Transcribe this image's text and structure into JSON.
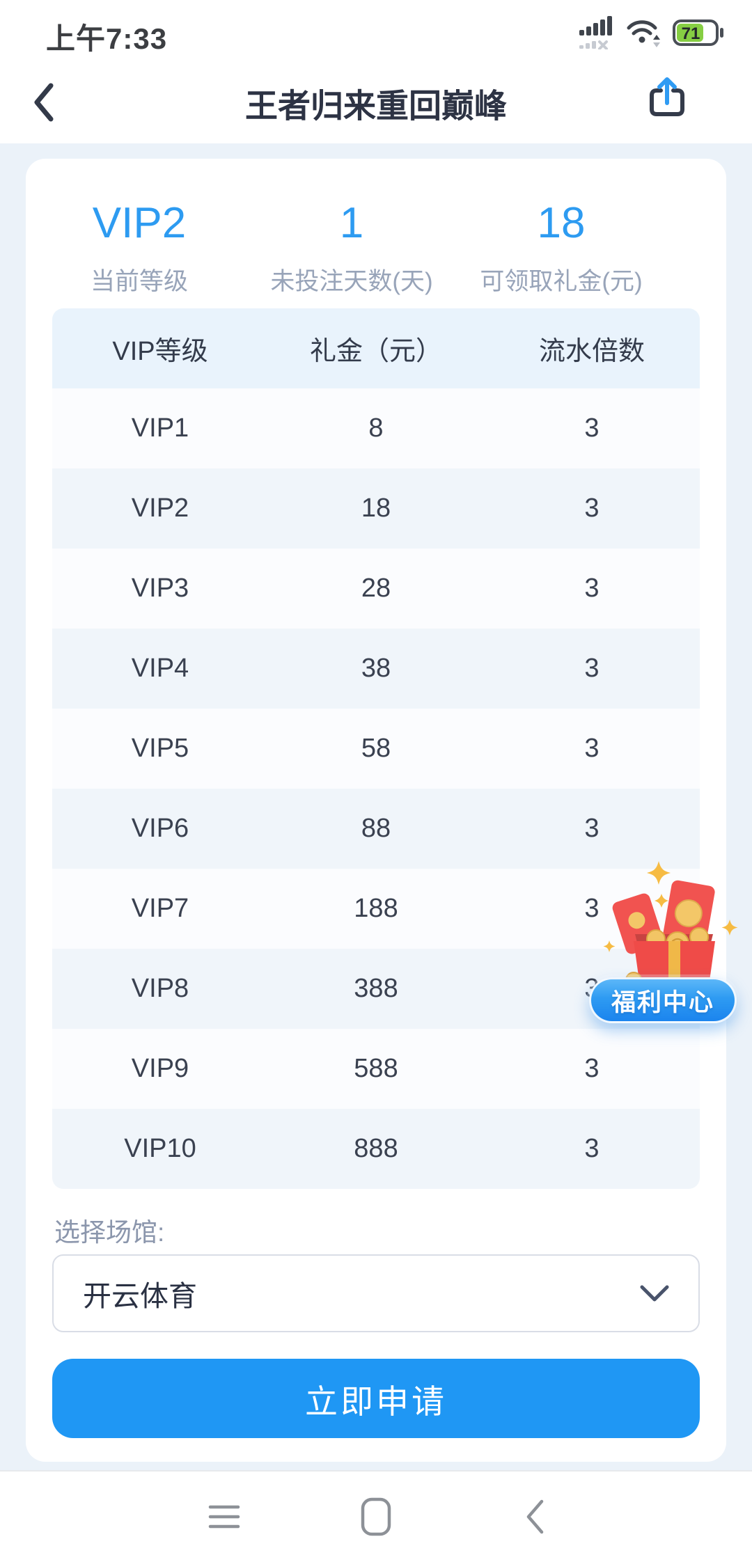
{
  "status_bar": {
    "time": "上午7:33",
    "battery_level": "71",
    "icons": [
      "dual-sim-signal-icon",
      "wifi-icon",
      "battery-icon"
    ]
  },
  "header": {
    "title": "王者归来重回巅峰",
    "back_icon": "back-chevron-icon",
    "share_icon": "share-icon"
  },
  "stats": [
    {
      "value": "VIP2",
      "label": "当前等级"
    },
    {
      "value": "1",
      "label": "未投注天数(天)"
    },
    {
      "value": "18",
      "label": "可领取礼金(元)"
    }
  ],
  "table": {
    "headers": [
      "VIP等级",
      "礼金（元）",
      "流水倍数"
    ],
    "rows": [
      [
        "VIP1",
        "8",
        "3"
      ],
      [
        "VIP2",
        "18",
        "3"
      ],
      [
        "VIP3",
        "28",
        "3"
      ],
      [
        "VIP4",
        "38",
        "3"
      ],
      [
        "VIP5",
        "58",
        "3"
      ],
      [
        "VIP6",
        "88",
        "3"
      ],
      [
        "VIP7",
        "188",
        "3"
      ],
      [
        "VIP8",
        "388",
        "3"
      ],
      [
        "VIP9",
        "588",
        "3"
      ],
      [
        "VIP10",
        "888",
        "3"
      ]
    ]
  },
  "venue": {
    "label": "选择场馆:",
    "selected": "开云体育"
  },
  "apply_button": {
    "label": "立即申请"
  },
  "floating_widget": {
    "label": "福利中心",
    "art": "gift-box-red-envelopes-coins"
  },
  "nav_bar": {
    "icons": [
      "recents-icon",
      "home-icon",
      "back-icon"
    ]
  },
  "colors": {
    "accent_blue": "#1f97f4",
    "stat_number_blue": "#2d9bf1",
    "page_background": "#ebf2f9",
    "table_header_bg": "#e9f3fc",
    "table_row_alt_bg": "#f0f5fa",
    "battery_green": "#86ce43",
    "badge_red": "#f15350",
    "badge_gold": "#f2c565"
  }
}
